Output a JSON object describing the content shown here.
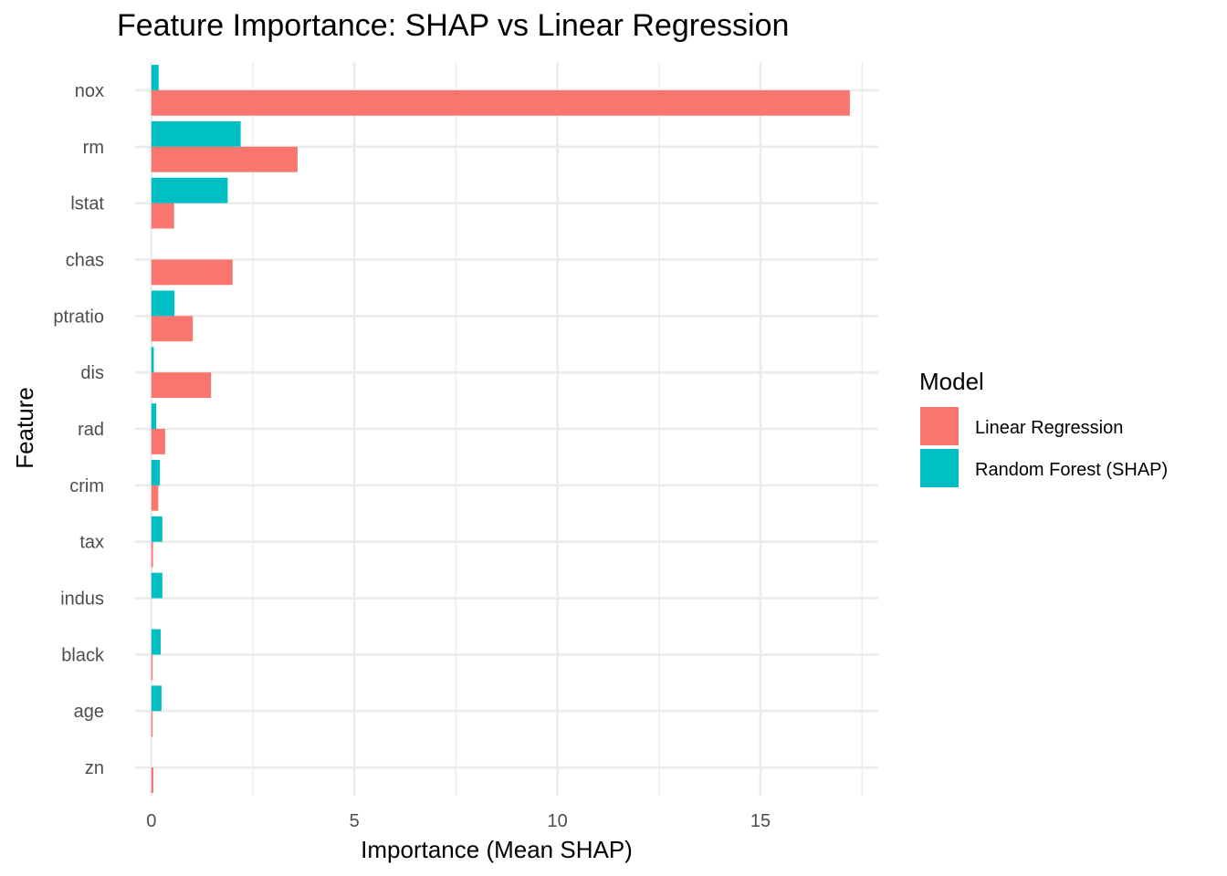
{
  "chart_data": {
    "type": "bar",
    "orientation": "horizontal",
    "title": "Feature Importance: SHAP vs Linear Regression",
    "xlabel": "Importance (Mean SHAP)",
    "ylabel": "Feature",
    "xlim": [
      -0.4,
      17.9
    ],
    "xticks": [
      0,
      5,
      10,
      15
    ],
    "grid": true,
    "legend_position": "right",
    "legend_title": "Model",
    "categories": [
      "nox",
      "rm",
      "lstat",
      "chas",
      "ptratio",
      "dis",
      "rad",
      "crim",
      "tax",
      "indus",
      "black",
      "age",
      "zn"
    ],
    "series": [
      {
        "name": "Linear Regression",
        "color": "#F8766D",
        "values": [
          17.2,
          3.6,
          0.56,
          2.0,
          1.02,
          1.47,
          0.34,
          0.17,
          0.04,
          0.0,
          0.03,
          0.03,
          0.05
        ]
      },
      {
        "name": "Random Forest (SHAP)",
        "color": "#00BFC4",
        "values": [
          0.18,
          2.2,
          1.88,
          0.0,
          0.57,
          0.06,
          0.12,
          0.21,
          0.27,
          0.27,
          0.23,
          0.25,
          0.0
        ]
      }
    ]
  }
}
